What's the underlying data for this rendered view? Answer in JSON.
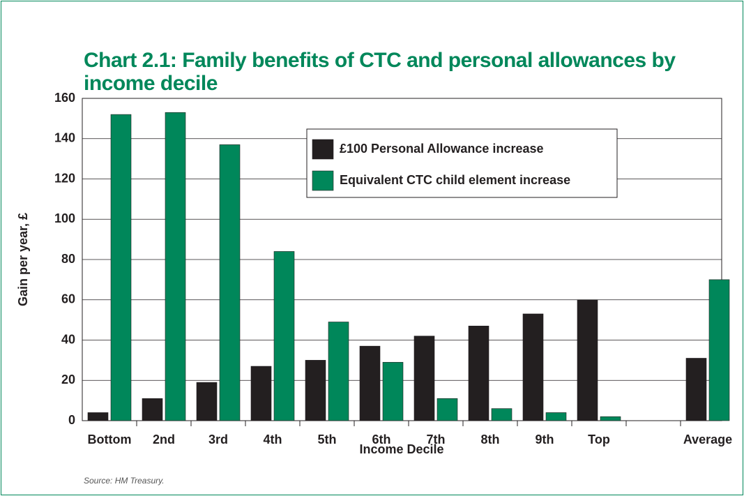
{
  "chart_data": {
    "type": "bar",
    "title": "Chart 2.1: Family benefits of CTC and personal allowances by income decile",
    "y_label": "Gain per year, £",
    "x_label": "Income Decile",
    "source": "Source: HM Treasury.",
    "categories": [
      "Bottom",
      "2nd",
      "3rd",
      "4th",
      "5th",
      "6th",
      "7th",
      "8th",
      "9th",
      "Top",
      null,
      "Average"
    ],
    "series": [
      {
        "name": "£100 Personal Allowance increase",
        "color": "#231f20",
        "values": [
          4,
          11,
          19,
          27,
          30,
          37,
          42,
          47,
          53,
          60,
          null,
          31
        ]
      },
      {
        "name": "Equivalent CTC child element increase",
        "color": "#00875a",
        "values": [
          152,
          153,
          137,
          84,
          49,
          29,
          11,
          6,
          4,
          2,
          null,
          70
        ]
      }
    ],
    "ylim": [
      0,
      160
    ],
    "yticks": [
      0,
      20,
      40,
      60,
      80,
      100,
      120,
      140,
      160
    ],
    "grid": true,
    "legend": "top-center"
  }
}
